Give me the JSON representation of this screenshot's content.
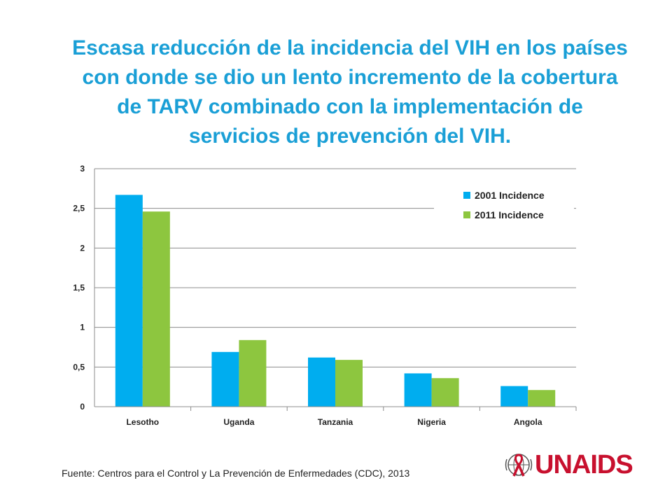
{
  "chart_data": {
    "type": "bar",
    "title": "Escasa reducción de la incidencia del VIH en los países con donde se dio un lento incremento de la cobertura de TARV combinado con  la implementación de servicios de prevención del VIH.",
    "title_lines": [
      "Escasa reducción de la incidencia del VIH en los países",
      "con donde se dio un lento incremento de la cobertura",
      "de TARV combinado con  la implementación de",
      "servicios de prevención del VIH."
    ],
    "categories": [
      "Lesotho",
      "Uganda",
      "Tanzania",
      "Nigeria",
      "Angola"
    ],
    "series": [
      {
        "name": "2001 Incidence",
        "color": "#00adef",
        "values": [
          2.67,
          0.69,
          0.62,
          0.42,
          0.26
        ]
      },
      {
        "name": "2011 Incidence",
        "color": "#8dc63f",
        "values": [
          2.46,
          0.84,
          0.59,
          0.36,
          0.21
        ]
      }
    ],
    "yticks": [
      "0",
      "0,5",
      "1",
      "1,5",
      "2",
      "2,5",
      "3"
    ],
    "ylim": [
      0,
      3
    ],
    "grid": true,
    "legend_position": "top-right",
    "xlabel": "",
    "ylabel": ""
  },
  "footer": {
    "source": "Fuente: Centros para el Control y La Prevención de Enfermedades (CDC), 2013"
  },
  "logo": {
    "text": "UNAIDS",
    "color": "#c8102e",
    "icon": "un-emblem-red-ribbon-icon"
  }
}
